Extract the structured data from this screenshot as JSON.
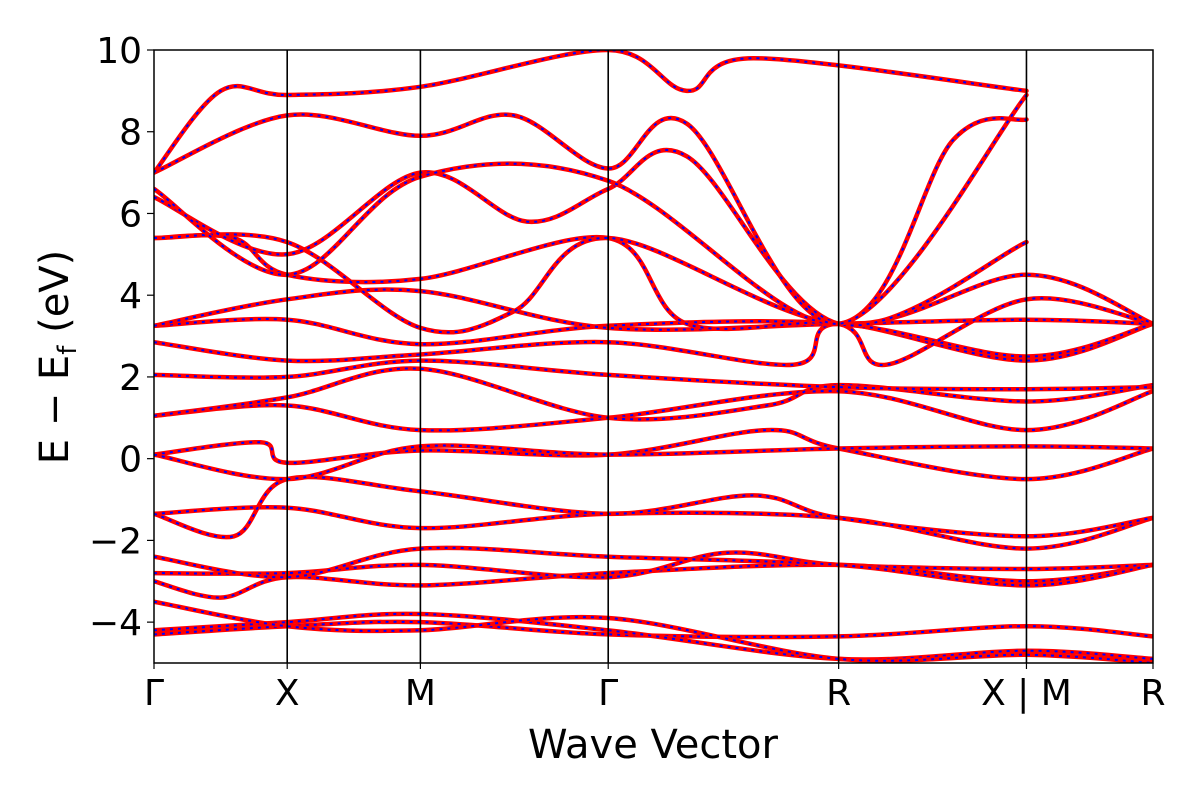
{
  "chart_data": {
    "type": "line",
    "title": "",
    "xlabel": "Wave Vector",
    "ylabel_parts": {
      "main": "E  −  E",
      "sub": "f",
      "unit": " (eV)"
    },
    "ylim": [
      -5,
      10
    ],
    "yticks": [
      -4,
      -2,
      0,
      2,
      4,
      6,
      8,
      10
    ],
    "ytick_labels": [
      "−4",
      "−2",
      "0",
      "2",
      "4",
      "6",
      "8",
      "10"
    ],
    "grid": false,
    "legend": "none",
    "x_range": [
      0,
      7.5
    ],
    "high_symmetry_points": [
      {
        "label": "Γ",
        "x": 0
      },
      {
        "label": "X",
        "x": 1.0
      },
      {
        "label": "M",
        "x": 2.0
      },
      {
        "label": "Γ",
        "x": 3.41
      },
      {
        "label": "R",
        "x": 5.14
      },
      {
        "label": "X | M",
        "x": 6.55
      },
      {
        "label": "R",
        "x": 7.5
      }
    ],
    "colors": {
      "dft": "#ff0000",
      "wannier": "#0000ff",
      "frame": "#000000"
    },
    "series": [
      {
        "points": [
          [
            0,
            -4.3
          ],
          [
            1.0,
            -4.1
          ],
          [
            2.0,
            -4.0
          ],
          [
            3.41,
            -4.3
          ],
          [
            5.14,
            -4.35
          ],
          [
            6.55,
            -4.1
          ],
          [
            7.5,
            -4.35
          ]
        ]
      },
      {
        "points": [
          [
            0,
            -4.2
          ],
          [
            1.0,
            -4.0
          ],
          [
            2.0,
            -3.8
          ],
          [
            3.41,
            -4.2
          ],
          [
            5.14,
            -4.9
          ],
          [
            6.55,
            -4.7
          ],
          [
            7.5,
            -4.9
          ]
        ]
      },
      {
        "points": [
          [
            0,
            -3.5
          ],
          [
            1.0,
            -4.1
          ],
          [
            2.0,
            -4.2
          ],
          [
            3.41,
            -3.9
          ],
          [
            5.14,
            -4.9
          ],
          [
            6.55,
            -4.8
          ],
          [
            7.5,
            -5.0
          ]
        ]
      },
      {
        "points": [
          [
            0,
            -3.0
          ],
          [
            0.5,
            -3.4
          ],
          [
            1.0,
            -2.9
          ],
          [
            2.0,
            -3.1
          ],
          [
            3.41,
            -2.8
          ],
          [
            5.14,
            -2.6
          ],
          [
            6.55,
            -3.0
          ],
          [
            7.5,
            -2.6
          ]
        ]
      },
      {
        "points": [
          [
            0,
            -2.8
          ],
          [
            1.0,
            -2.8
          ],
          [
            2.0,
            -2.6
          ],
          [
            3.41,
            -2.9
          ],
          [
            4.3,
            -2.3
          ],
          [
            5.14,
            -2.6
          ],
          [
            6.55,
            -2.7
          ],
          [
            7.5,
            -2.6
          ]
        ]
      },
      {
        "points": [
          [
            0,
            -2.4
          ],
          [
            1.0,
            -2.9
          ],
          [
            2.0,
            -2.2
          ],
          [
            3.41,
            -2.4
          ],
          [
            5.14,
            -2.6
          ],
          [
            6.55,
            -3.1
          ],
          [
            7.5,
            -2.6
          ]
        ]
      },
      {
        "points": [
          [
            0,
            -1.35
          ],
          [
            1.0,
            -1.2
          ],
          [
            2.0,
            -1.7
          ],
          [
            3.41,
            -1.35
          ],
          [
            5.14,
            -1.45
          ],
          [
            6.55,
            -2.2
          ],
          [
            7.5,
            -1.45
          ]
        ]
      },
      {
        "points": [
          [
            0,
            -1.35
          ],
          [
            0.6,
            -1.9
          ],
          [
            1.0,
            -0.5
          ],
          [
            2.0,
            -0.8
          ],
          [
            3.41,
            -1.35
          ],
          [
            4.5,
            -0.9
          ],
          [
            5.14,
            -1.45
          ],
          [
            6.55,
            -1.9
          ],
          [
            7.5,
            -1.45
          ]
        ]
      },
      {
        "points": [
          [
            0,
            0.1
          ],
          [
            0.8,
            0.4
          ],
          [
            1.0,
            -0.1
          ],
          [
            2.0,
            0.2
          ],
          [
            3.41,
            0.1
          ],
          [
            4.6,
            0.7
          ],
          [
            5.14,
            0.25
          ],
          [
            6.55,
            -0.5
          ],
          [
            7.5,
            0.25
          ]
        ]
      },
      {
        "points": [
          [
            0,
            0.1
          ],
          [
            1.0,
            -0.5
          ],
          [
            2.0,
            0.3
          ],
          [
            3.41,
            0.1
          ],
          [
            5.14,
            0.25
          ],
          [
            6.55,
            0.3
          ],
          [
            7.5,
            0.25
          ]
        ]
      },
      {
        "points": [
          [
            0,
            1.05
          ],
          [
            1.0,
            1.3
          ],
          [
            2.0,
            0.7
          ],
          [
            3.41,
            1.0
          ],
          [
            5.14,
            1.65
          ],
          [
            6.55,
            0.7
          ],
          [
            7.5,
            1.65
          ]
        ]
      },
      {
        "points": [
          [
            0,
            1.05
          ],
          [
            1.0,
            1.5
          ],
          [
            2.0,
            2.2
          ],
          [
            3.41,
            1.0
          ],
          [
            4.6,
            1.3
          ],
          [
            5.14,
            1.8
          ],
          [
            6.55,
            1.4
          ],
          [
            7.5,
            1.8
          ]
        ]
      },
      {
        "points": [
          [
            0,
            2.05
          ],
          [
            1.0,
            2.0
          ],
          [
            2.0,
            2.4
          ],
          [
            3.41,
            2.05
          ],
          [
            5.14,
            1.75
          ],
          [
            6.55,
            1.7
          ],
          [
            7.5,
            1.75
          ]
        ]
      },
      {
        "points": [
          [
            0,
            2.85
          ],
          [
            1.0,
            2.4
          ],
          [
            2.0,
            2.55
          ],
          [
            3.41,
            2.85
          ],
          [
            4.8,
            2.3
          ],
          [
            5.14,
            3.3
          ],
          [
            6.55,
            2.4
          ],
          [
            7.5,
            3.3
          ]
        ]
      },
      {
        "points": [
          [
            0,
            3.25
          ],
          [
            1.0,
            3.4
          ],
          [
            2.0,
            2.8
          ],
          [
            3.41,
            3.25
          ],
          [
            5.14,
            3.3
          ],
          [
            6.55,
            2.5
          ],
          [
            7.5,
            3.3
          ]
        ]
      },
      {
        "points": [
          [
            0,
            3.25
          ],
          [
            1.0,
            3.9
          ],
          [
            2.0,
            4.1
          ],
          [
            3.41,
            3.2
          ],
          [
            5.14,
            3.3
          ],
          [
            6.55,
            3.4
          ],
          [
            7.5,
            3.3
          ]
        ]
      },
      {
        "points": [
          [
            0,
            5.4
          ],
          [
            0.6,
            5.4
          ],
          [
            1.0,
            4.5
          ],
          [
            2.0,
            4.4
          ],
          [
            3.41,
            5.4
          ],
          [
            4.0,
            3.3
          ],
          [
            5.14,
            3.3
          ],
          [
            5.5,
            2.3
          ],
          [
            6.55,
            3.9
          ],
          [
            7.5,
            3.3
          ]
        ]
      },
      {
        "points": [
          [
            0,
            5.4
          ],
          [
            1.0,
            5.3
          ],
          [
            2.0,
            3.2
          ],
          [
            2.7,
            3.6
          ],
          [
            3.41,
            5.4
          ],
          [
            5.14,
            3.3
          ],
          [
            6.55,
            4.5
          ],
          [
            7.5,
            3.3
          ]
        ]
      },
      {
        "points": [
          [
            0,
            6.4
          ],
          [
            1.0,
            5.0
          ],
          [
            2.0,
            7.0
          ],
          [
            2.8,
            5.8
          ],
          [
            3.41,
            6.6
          ],
          [
            4.0,
            7.4
          ],
          [
            5.14,
            3.3
          ],
          [
            6.55,
            5.3
          ]
        ]
      },
      {
        "points": [
          [
            0,
            6.6
          ],
          [
            1.0,
            4.5
          ],
          [
            2.0,
            6.9
          ],
          [
            3.41,
            6.8
          ],
          [
            5.14,
            3.3
          ],
          [
            6.0,
            7.8
          ],
          [
            6.55,
            8.3
          ]
        ]
      },
      {
        "points": [
          [
            0,
            7.0
          ],
          [
            1.0,
            8.4
          ],
          [
            2.0,
            7.9
          ],
          [
            2.7,
            8.4
          ],
          [
            3.41,
            7.1
          ],
          [
            4.0,
            8.2
          ],
          [
            5.14,
            3.3
          ],
          [
            6.55,
            8.9
          ]
        ]
      },
      {
        "points": [
          [
            0,
            7.0
          ],
          [
            0.5,
            9.0
          ],
          [
            1.0,
            8.9
          ],
          [
            2.0,
            9.1
          ],
          [
            3.41,
            10.0
          ],
          [
            4.0,
            9.0
          ],
          [
            4.5,
            9.8
          ],
          [
            6.55,
            9.0
          ]
        ]
      }
    ]
  }
}
